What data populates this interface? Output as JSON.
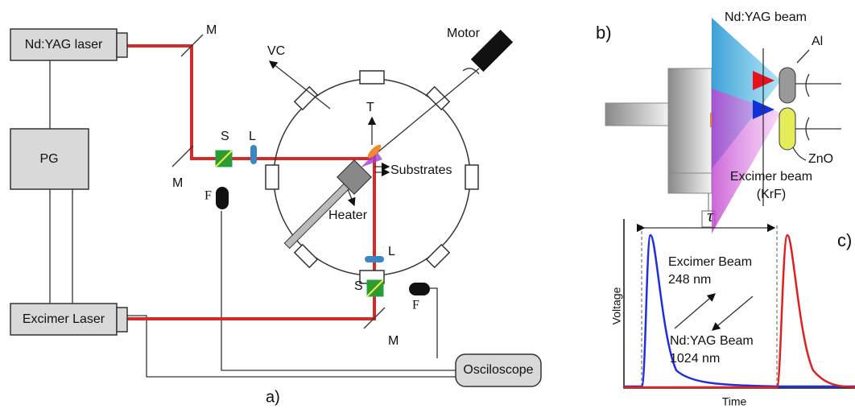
{
  "panel_a": {
    "caption": "a)",
    "equipment": {
      "ndyag_laser": "Nd:YAG laser",
      "pulse_generator": "PG",
      "excimer_laser": "Excimer Laser",
      "oscilloscope": "Osciloscope"
    },
    "labels": {
      "mirror": "M",
      "shutter": "S",
      "lens": "L",
      "photodiode": "F",
      "vacuum_chamber": "VC",
      "motor": "Motor",
      "thermocouple": "T",
      "substrates": "Substrates",
      "heater": "Heater"
    }
  },
  "panel_b": {
    "caption": "b)",
    "ndyag_beam": "Nd:YAG beam",
    "al_target": "Al",
    "zno_target": "ZnO",
    "excimer_beam": "Excimer beam",
    "excimer_type": "(KrF)"
  },
  "panel_c": {
    "caption": "c)",
    "delay": "τ",
    "y_label": "Voltage",
    "x_label": "Time",
    "excimer_label": "Excimer Beam",
    "excimer_wavelength": "248 nm",
    "ndyag_label": "Nd:YAG Beam",
    "ndyag_wavelength": "1024 nm"
  }
}
